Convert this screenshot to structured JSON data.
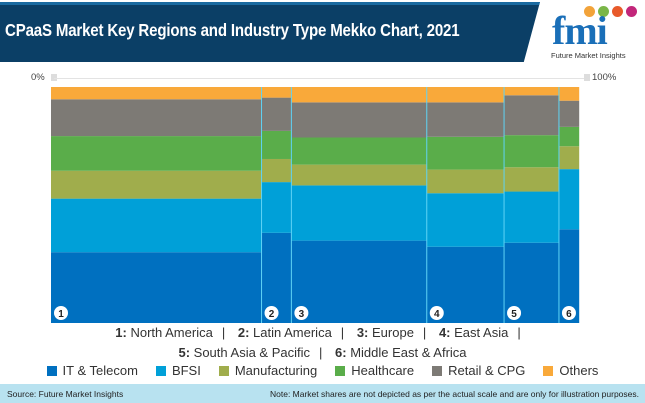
{
  "header": {
    "title": "CPaaS Market Key Regions and Industry Type Mekko Chart, 2021"
  },
  "logo": {
    "text": "fmi",
    "subtitle": "Future Market Insights"
  },
  "footer": {
    "source": "Source: Future Market Insights",
    "note": "Note: Market shares are not depicted as per the actual scale and are only for illustration purposes."
  },
  "chart_data": {
    "type": "mekko",
    "title": "CPaaS Market Key Regions and Industry Type Mekko Chart, 2021",
    "x_axis_labels": [
      "0%",
      "100%"
    ],
    "region_keys": [
      {
        "num": "1:",
        "name": "North America"
      },
      {
        "num": "2:",
        "name": "Latin America"
      },
      {
        "num": "3:",
        "name": "Europe"
      },
      {
        "num": "4:",
        "name": "East Asia"
      },
      {
        "num": "5:",
        "name": "South Asia & Pacific"
      },
      {
        "num": "6:",
        "name": "Middle East & Africa"
      }
    ],
    "column_labels": [
      "1",
      "2",
      "3",
      "4",
      "5",
      "6"
    ],
    "column_widths_pct": [
      39.5,
      5.6,
      25.4,
      14.5,
      10.3,
      3.8
    ],
    "series": [
      {
        "name": "IT & Telecom",
        "color": "#0070c0",
        "values": [
          30,
          38.2,
          34.9,
          32.3,
          34,
          39.7
        ]
      },
      {
        "name": "BFSI",
        "color": "#00a0d8",
        "values": [
          22.7,
          21.5,
          23.4,
          22.7,
          21.7,
          25.5
        ]
      },
      {
        "name": "Manufacturing",
        "color": "#a0ad4c",
        "values": [
          11.8,
          9.8,
          8.8,
          10,
          10.3,
          9.7
        ]
      },
      {
        "name": "Healthcare",
        "color": "#5aad4a",
        "values": [
          14.7,
          11.9,
          11.5,
          13.9,
          13.6,
          8.2
        ]
      },
      {
        "name": "Retail & CPG",
        "color": "#7d7a75",
        "values": [
          15.6,
          14.1,
          14.9,
          14.6,
          16.9,
          11.1
        ]
      },
      {
        "name": "Others",
        "color": "#f9a93a",
        "values": [
          5.2,
          4.5,
          6.5,
          6.5,
          3.5,
          5.8
        ]
      }
    ],
    "legend_position": "bottom"
  }
}
